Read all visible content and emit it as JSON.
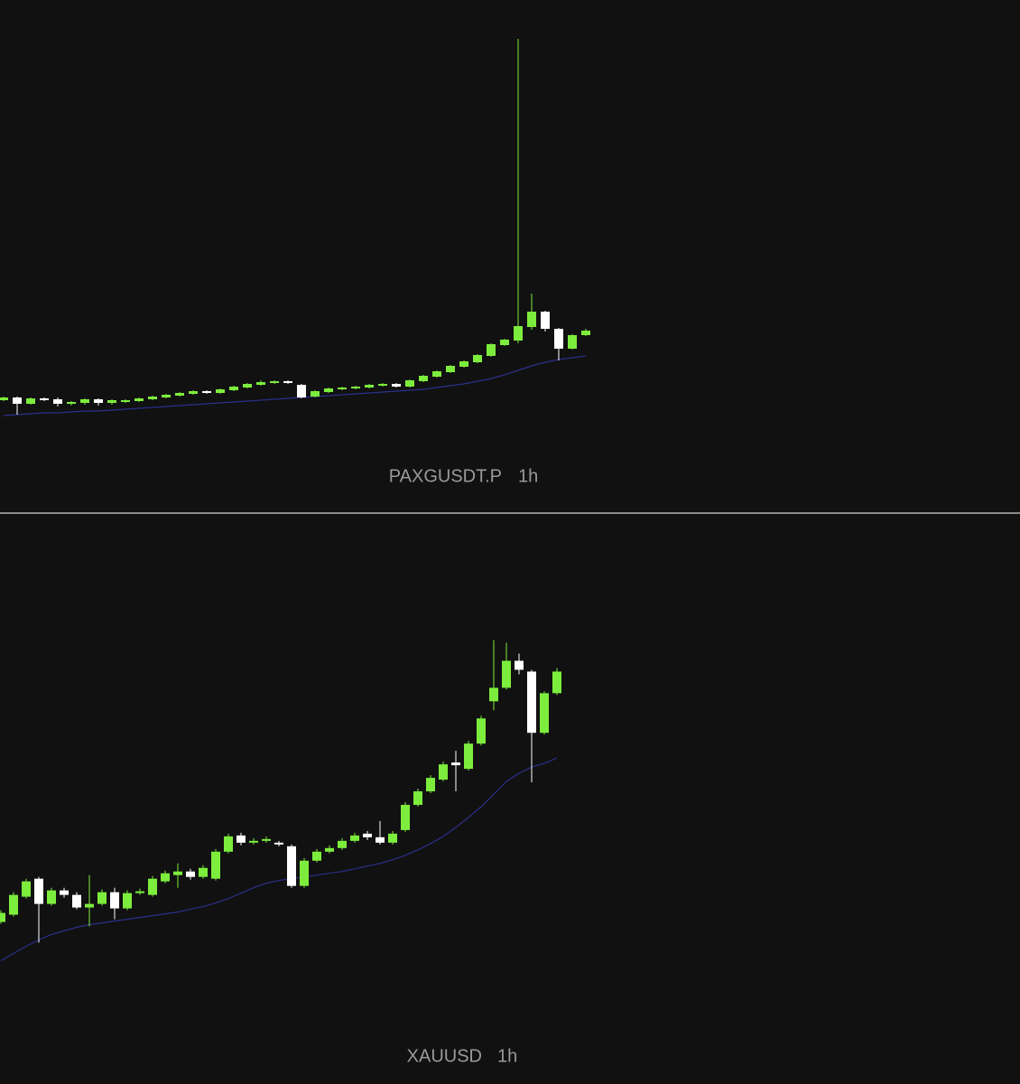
{
  "chart_data": [
    {
      "type": "candlestick",
      "symbol": "PAXGUSDT.P",
      "interval": "1h",
      "up_color": "#7ded3d",
      "down_color": "#ffffff",
      "ylim": [
        0,
        567
      ],
      "open": [
        124,
        127,
        120,
        126,
        125,
        120,
        121,
        125,
        121,
        122,
        123,
        125,
        127,
        129,
        131,
        134,
        132,
        135,
        138,
        141,
        143,
        145,
        141,
        128,
        133,
        136,
        137,
        138,
        140,
        142,
        139,
        145,
        150,
        155,
        161,
        166,
        173,
        185,
        190,
        205,
        222,
        203,
        181,
        196
      ],
      "high": [
        128,
        128,
        127,
        127,
        127,
        123,
        126,
        126,
        125,
        125,
        127,
        129,
        131,
        133,
        135,
        135,
        137,
        140,
        143,
        146,
        146,
        146,
        142,
        135,
        138,
        139,
        140,
        142,
        143,
        143,
        147,
        152,
        157,
        163,
        168,
        175,
        187,
        192,
        524,
        242,
        223,
        204,
        197,
        203
      ],
      "low": [
        123,
        108,
        119,
        123,
        117,
        118,
        119,
        118,
        119,
        121,
        122,
        124,
        126,
        128,
        130,
        131,
        131,
        134,
        137,
        140,
        142,
        142,
        126,
        127,
        132,
        135,
        136,
        137,
        139,
        138,
        138,
        144,
        149,
        154,
        160,
        165,
        172,
        184,
        187,
        202,
        200,
        168,
        180,
        195
      ],
      "close": [
        127,
        120,
        126,
        124,
        120,
        122,
        125,
        121,
        124,
        124,
        126,
        128,
        130,
        132,
        134,
        132,
        136,
        139,
        142,
        144,
        145,
        143,
        127,
        134,
        137,
        138,
        139,
        141,
        142,
        139,
        146,
        151,
        156,
        162,
        167,
        174,
        186,
        191,
        206,
        222,
        203,
        181,
        196,
        201
      ],
      "ma": {
        "color": "#2b2f8a",
        "values": [
          107,
          108,
          109,
          110,
          110,
          111,
          112,
          112,
          113,
          114,
          115,
          116,
          117,
          118,
          119,
          120,
          121,
          122,
          123,
          124,
          125,
          126,
          127,
          128,
          129,
          130,
          131,
          132,
          133,
          134,
          135,
          136,
          138,
          140,
          142,
          145,
          148,
          152,
          157,
          162,
          166,
          169,
          171,
          173
        ]
      }
    },
    {
      "type": "candlestick",
      "symbol": "XAUUSD",
      "interval": "1h",
      "up_color": "#7ded3d",
      "down_color": "#ffffff",
      "ylim": [
        0,
        633
      ],
      "open": [
        180,
        188,
        208,
        228,
        200,
        215,
        210,
        196,
        200,
        213,
        195,
        212,
        210,
        225,
        232,
        236,
        230,
        228,
        258,
        276,
        268,
        270,
        268,
        264,
        220,
        248,
        258,
        262,
        270,
        278,
        274,
        268,
        282,
        310,
        325,
        338,
        357,
        350,
        378,
        425,
        440,
        470,
        458,
        390,
        434
      ],
      "high": [
        193,
        213,
        228,
        230,
        218,
        218,
        213,
        232,
        216,
        218,
        215,
        217,
        231,
        237,
        245,
        239,
        243,
        261,
        278,
        279,
        273,
        275,
        270,
        266,
        251,
        261,
        265,
        273,
        279,
        281,
        292,
        281,
        313,
        328,
        343,
        358,
        370,
        381,
        409,
        493,
        490,
        478,
        460,
        436,
        462
      ],
      "low": [
        178,
        186,
        206,
        157,
        198,
        207,
        194,
        175,
        198,
        183,
        193,
        210,
        208,
        223,
        218,
        227,
        228,
        226,
        256,
        265,
        266,
        268,
        264,
        218,
        218,
        246,
        256,
        260,
        268,
        271,
        266,
        266,
        280,
        308,
        323,
        336,
        325,
        348,
        376,
        415,
        438,
        455,
        335,
        388,
        432
      ],
      "close": [
        190,
        210,
        225,
        200,
        215,
        210,
        196,
        200,
        213,
        195,
        212,
        214,
        228,
        234,
        236,
        230,
        240,
        258,
        275,
        268,
        270,
        272,
        266,
        220,
        248,
        258,
        262,
        270,
        276,
        274,
        268,
        278,
        310,
        325,
        340,
        355,
        354,
        378,
        406,
        440,
        470,
        460,
        390,
        434,
        458
      ],
      "ma": {
        "color": "#2b2f8a",
        "values": [
          137,
          145,
          153,
          160,
          166,
          170,
          174,
          177,
          179,
          181,
          183,
          185,
          187,
          189,
          191,
          194,
          197,
          201,
          206,
          212,
          218,
          223,
          226,
          228,
          230,
          232,
          234,
          236,
          239,
          242,
          245,
          249,
          254,
          260,
          267,
          275,
          285,
          296,
          308,
          322,
          336,
          345,
          352,
          356,
          362
        ]
      }
    }
  ]
}
